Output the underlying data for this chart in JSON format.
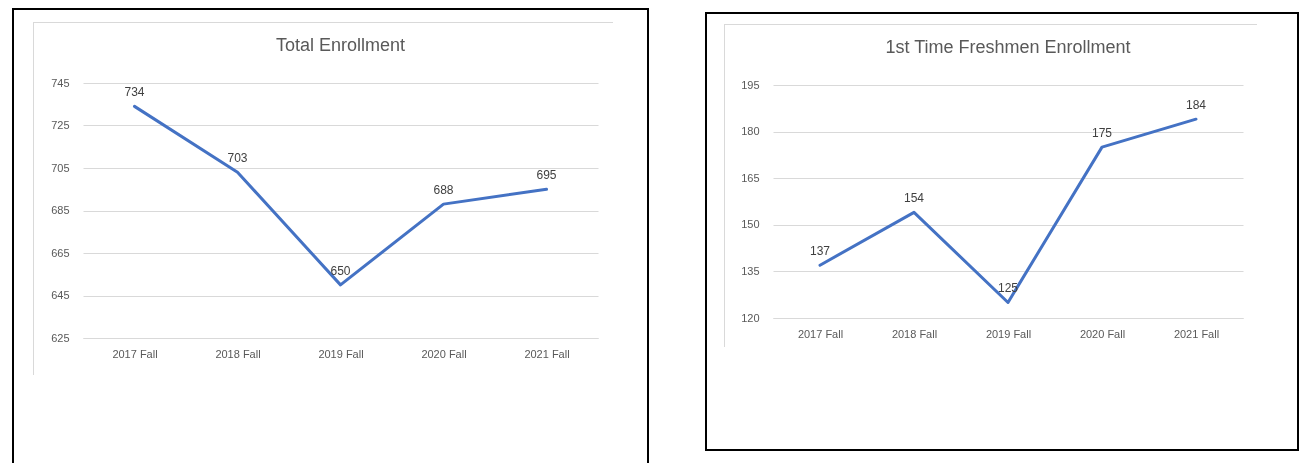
{
  "chart_data": [
    {
      "type": "line",
      "title": "Total Enrollment",
      "categories": [
        "2017 Fall",
        "2018 Fall",
        "2019 Fall",
        "2020 Fall",
        "2021 Fall"
      ],
      "series": [
        {
          "color": "#4472c4",
          "values": [
            734,
            703,
            650,
            688,
            695
          ]
        }
      ],
      "ylim": [
        625,
        745
      ],
      "yticks": [
        625,
        645,
        665,
        685,
        705,
        725,
        745
      ],
      "grid": "y",
      "data_labels": true
    },
    {
      "type": "line",
      "title": "1st Time Freshmen Enrollment",
      "categories": [
        "2017 Fall",
        "2018 Fall",
        "2019 Fall",
        "2020 Fall",
        "2021 Fall"
      ],
      "series": [
        {
          "color": "#4472c4",
          "values": [
            137,
            154,
            125,
            175,
            184
          ]
        }
      ],
      "ylim": [
        120,
        195
      ],
      "yticks": [
        120,
        135,
        150,
        165,
        180,
        195
      ],
      "grid": "y",
      "data_labels": true
    }
  ]
}
